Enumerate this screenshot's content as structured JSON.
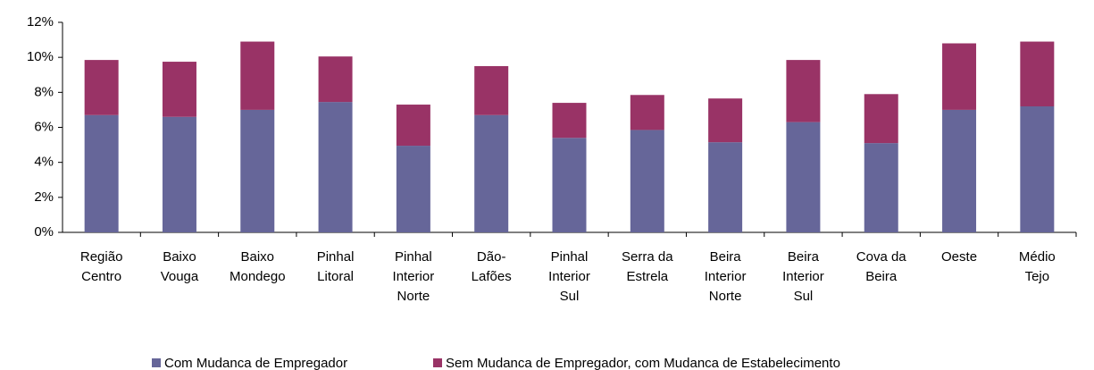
{
  "chart_data": {
    "type": "stacked_bar",
    "categories": [
      "Região\nCentro",
      "Baixo\nVouga",
      "Baixo\nMondego",
      "Pinhal\nLitoral",
      "Pinhal\nInterior\nNorte",
      "Dão-\nLafões",
      "Pinhal\nInterior\nSul",
      "Serra da\nEstrela",
      "Beira\nInterior\nNorte",
      "Beira\nInterior\nSul",
      "Cova da\nBeira",
      "Oeste",
      "Médio\nTejo"
    ],
    "series": [
      {
        "name": "Com Mudanca de Empregador",
        "color": "#666699",
        "values": [
          6.7,
          6.6,
          7.0,
          7.45,
          4.95,
          6.7,
          5.4,
          5.85,
          5.15,
          6.3,
          5.1,
          7.0,
          7.2
        ]
      },
      {
        "name": "Sem Mudanca de Empregador, com Mudanca de Estabelecimento",
        "color": "#993366",
        "values": [
          3.15,
          3.15,
          3.9,
          2.6,
          2.35,
          2.8,
          2.0,
          2.0,
          2.5,
          3.55,
          2.8,
          3.8,
          3.7
        ]
      }
    ],
    "ylim": [
      0,
      12
    ],
    "yticks": [
      {
        "value": 0,
        "label": "0%"
      },
      {
        "value": 2,
        "label": "2%"
      },
      {
        "value": 4,
        "label": "4%"
      },
      {
        "value": 6,
        "label": "6%"
      },
      {
        "value": 8,
        "label": "8%"
      },
      {
        "value": 10,
        "label": "10%"
      },
      {
        "value": 12,
        "label": "12%"
      }
    ],
    "legend": "bottom"
  }
}
